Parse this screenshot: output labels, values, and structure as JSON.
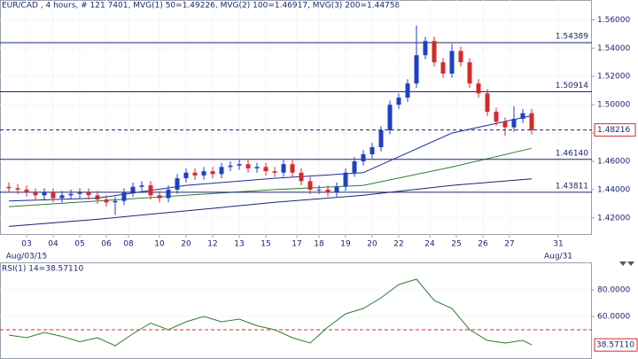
{
  "chart_data": [
    {
      "type": "candlestick",
      "title": "EUR/CAD , 4 hours, # 121 7401, MVG(1) 50=1.49226, MVG(2) 100=1.46917, MVG(3) 200=1.44758",
      "x": [
        0,
        1,
        2,
        3,
        4,
        5,
        6,
        7,
        8,
        9,
        10,
        11,
        12,
        13,
        14,
        15,
        16,
        17,
        18,
        19,
        20,
        21,
        22,
        23,
        24,
        25,
        26,
        27,
        28,
        29,
        30,
        31,
        32,
        33,
        34,
        35,
        36,
        37,
        38,
        39,
        40,
        41,
        42,
        43,
        44,
        45,
        46,
        47,
        48,
        49,
        50,
        51,
        52,
        53,
        54,
        55,
        56,
        57,
        58,
        59
      ],
      "open": [
        1.442,
        1.441,
        1.44,
        1.438,
        1.436,
        1.438,
        1.434,
        1.436,
        1.437,
        1.438,
        1.436,
        1.433,
        1.431,
        1.432,
        1.438,
        1.442,
        1.443,
        1.436,
        1.434,
        1.44,
        1.448,
        1.452,
        1.45,
        1.453,
        1.451,
        1.456,
        1.457,
        1.458,
        1.455,
        1.456,
        1.453,
        1.452,
        1.458,
        1.452,
        1.446,
        1.44,
        1.44,
        1.438,
        1.442,
        1.452,
        1.46,
        1.465,
        1.47,
        1.482,
        1.5,
        1.505,
        1.515,
        1.535,
        1.545,
        1.53,
        1.522,
        1.538,
        1.53,
        1.515,
        1.508,
        1.495,
        1.488,
        1.484,
        1.49,
        1.494
      ],
      "high": [
        1.445,
        1.444,
        1.443,
        1.441,
        1.441,
        1.441,
        1.439,
        1.44,
        1.441,
        1.441,
        1.439,
        1.436,
        1.435,
        1.441,
        1.445,
        1.446,
        1.446,
        1.439,
        1.443,
        1.451,
        1.455,
        1.455,
        1.456,
        1.456,
        1.459,
        1.46,
        1.461,
        1.461,
        1.459,
        1.459,
        1.456,
        1.461,
        1.461,
        1.455,
        1.449,
        1.443,
        1.443,
        1.445,
        1.455,
        1.463,
        1.468,
        1.473,
        1.485,
        1.503,
        1.508,
        1.518,
        1.556,
        1.548,
        1.548,
        1.533,
        1.543,
        1.541,
        1.533,
        1.518,
        1.511,
        1.498,
        1.491,
        1.499,
        1.497,
        1.497
      ],
      "low": [
        1.438,
        1.437,
        1.435,
        1.433,
        1.433,
        1.431,
        1.431,
        1.433,
        1.434,
        1.433,
        1.43,
        1.428,
        1.422,
        1.429,
        1.435,
        1.439,
        1.433,
        1.431,
        1.431,
        1.437,
        1.445,
        1.447,
        1.447,
        1.448,
        1.448,
        1.453,
        1.454,
        1.452,
        1.452,
        1.45,
        1.449,
        1.449,
        1.449,
        1.443,
        1.437,
        1.437,
        1.435,
        1.435,
        1.439,
        1.449,
        1.457,
        1.462,
        1.467,
        1.479,
        1.497,
        1.502,
        1.512,
        1.532,
        1.527,
        1.519,
        1.519,
        1.527,
        1.512,
        1.505,
        1.492,
        1.485,
        1.478,
        1.481,
        1.487,
        1.479
      ],
      "close": [
        1.441,
        1.44,
        1.438,
        1.436,
        1.438,
        1.434,
        1.436,
        1.437,
        1.438,
        1.436,
        1.433,
        1.431,
        1.432,
        1.438,
        1.442,
        1.443,
        1.436,
        1.434,
        1.44,
        1.448,
        1.452,
        1.45,
        1.453,
        1.451,
        1.456,
        1.457,
        1.458,
        1.455,
        1.456,
        1.453,
        1.452,
        1.458,
        1.452,
        1.446,
        1.44,
        1.44,
        1.438,
        1.442,
        1.452,
        1.46,
        1.465,
        1.47,
        1.482,
        1.5,
        1.505,
        1.515,
        1.535,
        1.545,
        1.53,
        1.522,
        1.538,
        1.53,
        1.515,
        1.508,
        1.495,
        1.488,
        1.484,
        1.49,
        1.494,
        1.482
      ],
      "up_color": "#1f3fc4",
      "down_color": "#d42a2a",
      "ma": [
        {
          "color": "#1a2a9a",
          "x": [
            0,
            10,
            20,
            30,
            40,
            50,
            59
          ],
          "values": [
            1.432,
            1.434,
            1.443,
            1.448,
            1.452,
            1.48,
            1.49226
          ]
        },
        {
          "color": "#2e7d32",
          "x": [
            0,
            10,
            20,
            30,
            40,
            50,
            59
          ],
          "values": [
            1.428,
            1.432,
            1.436,
            1.44,
            1.443,
            1.456,
            1.46917
          ]
        },
        {
          "color": "#1b2470",
          "x": [
            0,
            10,
            20,
            30,
            40,
            50,
            59
          ],
          "values": [
            1.414,
            1.419,
            1.425,
            1.431,
            1.436,
            1.443,
            1.44758
          ]
        }
      ],
      "levels": [
        1.54389,
        1.50914,
        {
          "value": 1.4614,
          "label": "1.46140"
        },
        1.43811
      ],
      "last_price": 1.48216,
      "xlim": [
        -1,
        65.8
      ],
      "ylim": [
        1.408,
        1.574
      ],
      "xticks": [
        {
          "value": 2,
          "label": "03"
        },
        {
          "value": 5,
          "label": "04"
        },
        {
          "value": 8,
          "label": "05"
        },
        {
          "value": 11,
          "label": "06"
        },
        {
          "value": 13.5,
          "label": "08"
        },
        {
          "value": 17,
          "label": "10"
        },
        20,
        {
          "value": 23,
          "label": "12"
        },
        {
          "value": 26,
          "label": "13"
        },
        {
          "value": 29,
          "label": "15"
        },
        {
          "value": 32.5,
          "label": "17"
        },
        {
          "value": 35,
          "label": "18"
        },
        {
          "value": 38,
          "label": "19"
        },
        {
          "value": 41,
          "label": "20"
        },
        {
          "value": 44,
          "label": "22"
        },
        {
          "value": 47.5,
          "label": "24"
        },
        {
          "value": 50.5,
          "label": "25"
        },
        {
          "value": 53.5,
          "label": "26"
        },
        {
          "value": 56.5,
          "label": "27"
        },
        {
          "value": 62,
          "label": "31"
        }
      ],
      "x_sublabels": [
        {
          "value": 2,
          "label": "Aug/03/15"
        },
        {
          "value": 62,
          "label": "Aug/31"
        }
      ],
      "yticks": [
        {
          "value": 1.42,
          "label": "1.42000"
        },
        {
          "value": 1.44,
          "label": "1.44000"
        },
        {
          "value": 1.46,
          "label": "1.46000"
        },
        {
          "value": 1.48,
          "label": "1.48000"
        },
        {
          "value": 1.5,
          "label": "1.50000"
        },
        {
          "value": 1.52,
          "label": "1.52000"
        },
        {
          "value": 1.54,
          "label": "1.54000"
        },
        {
          "value": 1.56,
          "label": "1.56000"
        }
      ],
      "grid": true
    },
    {
      "type": "line",
      "title": "RSI(1) 14=38.57110",
      "x": [
        0,
        2,
        4,
        6,
        8,
        10,
        12,
        14,
        16,
        18,
        20,
        22,
        24,
        26,
        28,
        30,
        32,
        34,
        36,
        38,
        40,
        42,
        44,
        46,
        48,
        50,
        52,
        54,
        56,
        58,
        59
      ],
      "values": [
        46,
        44,
        48,
        45,
        41,
        44,
        38,
        47,
        55,
        50,
        56,
        60,
        56,
        58,
        53,
        50,
        44,
        40,
        52,
        62,
        66,
        74,
        84,
        88,
        72,
        66,
        50,
        42,
        40,
        42,
        38.5711
      ],
      "color": "#2e7d32",
      "reference_lines": [
        50
      ],
      "last_value": {
        "value": 38.5711,
        "label": "38.57110"
      },
      "xlim": [
        -1,
        65.8
      ],
      "ylim": [
        28,
        100
      ],
      "yticks": [
        {
          "value": 60,
          "label": "60.0000"
        },
        {
          "value": 80,
          "label": "80.0000"
        }
      ],
      "grid": true
    }
  ]
}
